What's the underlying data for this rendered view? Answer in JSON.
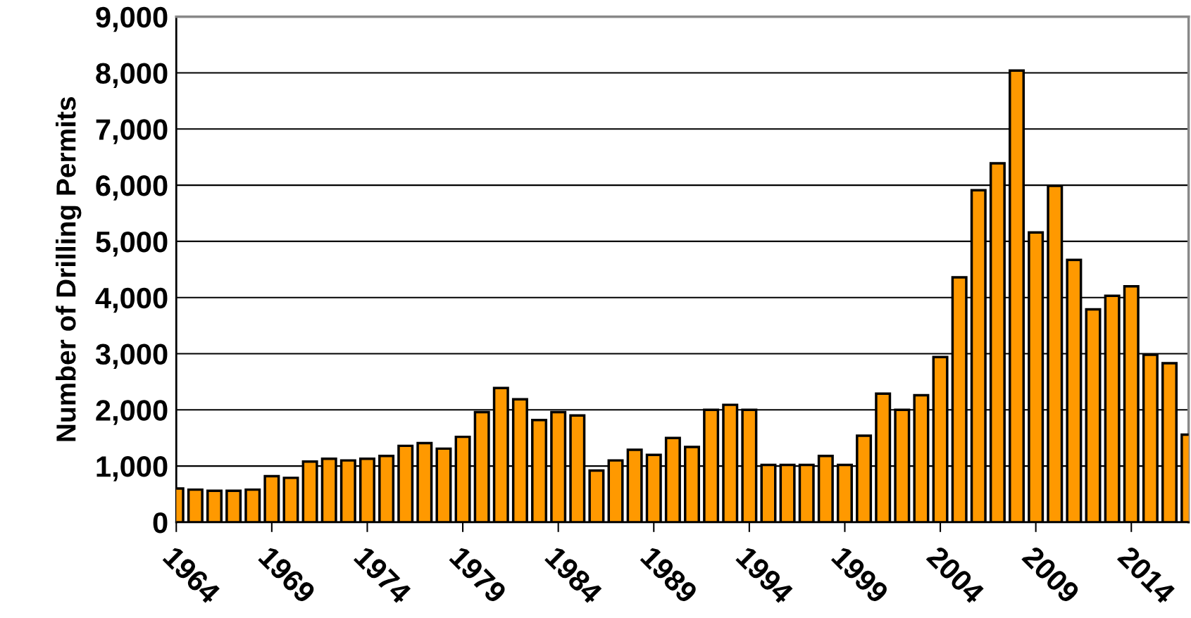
{
  "chart_data": {
    "type": "bar",
    "ylabel": "Number of Drilling Permits",
    "x": [
      1964,
      1965,
      1966,
      1967,
      1968,
      1969,
      1970,
      1971,
      1972,
      1973,
      1974,
      1975,
      1976,
      1977,
      1978,
      1979,
      1980,
      1981,
      1982,
      1983,
      1984,
      1985,
      1986,
      1987,
      1988,
      1989,
      1990,
      1991,
      1992,
      1993,
      1994,
      1995,
      1996,
      1997,
      1998,
      1999,
      2000,
      2001,
      2002,
      2003,
      2004,
      2005,
      2006,
      2007,
      2008,
      2009,
      2010,
      2011,
      2012,
      2013,
      2014,
      2015,
      2016,
      2017
    ],
    "series": [
      {
        "color": "#ff9900",
        "values": [
          600,
          580,
          560,
          560,
          580,
          820,
          790,
          1080,
          1130,
          1100,
          1130,
          1180,
          1360,
          1410,
          1310,
          1520,
          1960,
          2390,
          2190,
          1820,
          1960,
          1900,
          920,
          1100,
          1290,
          1200,
          1500,
          1340,
          2000,
          2090,
          2000,
          1020,
          1020,
          1020,
          1180,
          1020,
          1540,
          2290,
          2000,
          2260,
          2940,
          4360,
          5910,
          6390,
          8040,
          5160,
          5990,
          4670,
          3790,
          4030,
          4200,
          2980,
          2830,
          1560
        ]
      }
    ],
    "xlim": [
      1964,
      2017
    ],
    "xticks": [
      1964,
      1969,
      1974,
      1979,
      1984,
      1989,
      1994,
      1999,
      2004,
      2009,
      2014
    ],
    "ylim": [
      0,
      9000
    ],
    "yticks": [
      {
        "value": 0,
        "label": "0"
      },
      {
        "value": 1000,
        "label": "1,000"
      },
      {
        "value": 2000,
        "label": "2,000"
      },
      {
        "value": 3000,
        "label": "3,000"
      },
      {
        "value": 4000,
        "label": "4,000"
      },
      {
        "value": 5000,
        "label": "5,000"
      },
      {
        "value": 6000,
        "label": "6,000"
      },
      {
        "value": 7000,
        "label": "7,000"
      },
      {
        "value": 8000,
        "label": "8,000"
      },
      {
        "value": 9000,
        "label": "9,000"
      }
    ],
    "grid": "y"
  }
}
